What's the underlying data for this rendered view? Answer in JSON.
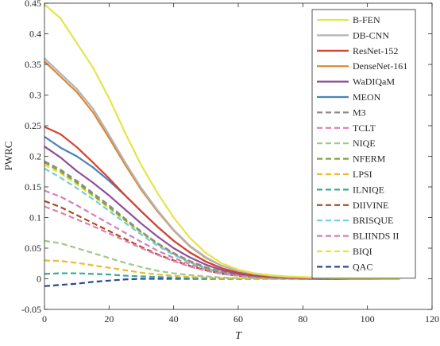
{
  "chart_data": {
    "type": "line",
    "title": "",
    "xlabel": "T",
    "ylabel": "PWRC",
    "xlim": [
      0,
      120
    ],
    "ylim": [
      -0.05,
      0.45
    ],
    "xticks": [
      0,
      20,
      40,
      60,
      80,
      100,
      120
    ],
    "xtick_labels": [
      "0",
      "20",
      "40",
      "60",
      "80",
      "100",
      "120"
    ],
    "yticks": [
      -0.05,
      0,
      0.05,
      0.1,
      0.15,
      0.2,
      0.25,
      0.3,
      0.35,
      0.4,
      0.45
    ],
    "ytick_labels": [
      "-0.05",
      "0",
      "0.05",
      "0.1",
      "0.15",
      "0.2",
      "0.25",
      "0.3",
      "0.35",
      "0.4",
      "0.45"
    ],
    "grid": false,
    "legend_position": "top-right",
    "x": [
      0,
      5,
      10,
      15,
      20,
      25,
      30,
      35,
      40,
      45,
      50,
      55,
      60,
      65,
      70,
      75,
      80,
      85,
      90,
      95,
      100,
      105,
      110
    ],
    "series": [
      {
        "name": "B-FEN",
        "color": "#e7e34a",
        "dashed": false,
        "values": [
          0.448,
          0.425,
          0.385,
          0.345,
          0.295,
          0.238,
          0.185,
          0.14,
          0.1,
          0.067,
          0.042,
          0.025,
          0.015,
          0.009,
          0.006,
          0.004,
          0.003,
          0.002,
          0.001,
          0.001,
          0.001,
          0.0,
          0.0
        ]
      },
      {
        "name": "DB-CNN",
        "color": "#b4b4b4",
        "dashed": false,
        "values": [
          0.36,
          0.335,
          0.31,
          0.278,
          0.235,
          0.19,
          0.148,
          0.112,
          0.08,
          0.054,
          0.035,
          0.021,
          0.013,
          0.008,
          0.005,
          0.003,
          0.002,
          0.001,
          0.001,
          0.0,
          0.0,
          0.0,
          0.0
        ]
      },
      {
        "name": "ResNet-152",
        "color": "#d6432f",
        "dashed": false,
        "values": [
          0.248,
          0.236,
          0.215,
          0.19,
          0.164,
          0.136,
          0.11,
          0.085,
          0.062,
          0.043,
          0.028,
          0.017,
          0.01,
          0.006,
          0.004,
          0.002,
          0.001,
          0.001,
          0.0,
          0.0,
          0.0,
          0.0,
          0.0
        ]
      },
      {
        "name": "DenseNet-161",
        "color": "#e0862f",
        "dashed": false,
        "values": [
          0.355,
          0.33,
          0.305,
          0.272,
          0.23,
          0.186,
          0.145,
          0.11,
          0.079,
          0.053,
          0.034,
          0.021,
          0.013,
          0.008,
          0.005,
          0.003,
          0.002,
          0.001,
          0.001,
          0.0,
          0.0,
          0.0,
          0.0
        ]
      },
      {
        "name": "WaDIQaM",
        "color": "#8e4f9a",
        "dashed": false,
        "values": [
          0.216,
          0.198,
          0.176,
          0.157,
          0.136,
          0.113,
          0.09,
          0.069,
          0.05,
          0.035,
          0.023,
          0.014,
          0.008,
          0.005,
          0.003,
          0.002,
          0.001,
          0.0,
          0.0,
          0.0,
          0.0,
          0.0,
          0.0
        ]
      },
      {
        "name": "MEON",
        "color": "#4a81b9",
        "dashed": false,
        "values": [
          0.232,
          0.214,
          0.2,
          0.182,
          0.16,
          0.136,
          0.11,
          0.085,
          0.062,
          0.043,
          0.028,
          0.017,
          0.01,
          0.006,
          0.004,
          0.002,
          0.001,
          0.001,
          0.0,
          0.0,
          0.0,
          0.0,
          0.0
        ]
      },
      {
        "name": "M3",
        "color": "#8c8c8c",
        "dashed": true,
        "values": [
          0.192,
          0.178,
          0.16,
          0.14,
          0.12,
          0.098,
          0.077,
          0.058,
          0.042,
          0.029,
          0.019,
          0.011,
          0.007,
          0.004,
          0.002,
          0.001,
          0.001,
          0.0,
          0.0,
          0.0,
          0.0,
          0.0,
          0.0
        ]
      },
      {
        "name": "TCLT",
        "color": "#e07fb0",
        "dashed": true,
        "values": [
          0.118,
          0.108,
          0.097,
          0.086,
          0.074,
          0.062,
          0.05,
          0.039,
          0.029,
          0.02,
          0.013,
          0.008,
          0.005,
          0.003,
          0.002,
          0.001,
          0.0,
          0.0,
          0.0,
          0.0,
          0.0,
          0.0,
          0.0
        ]
      },
      {
        "name": "NIQE",
        "color": "#9fc98a",
        "dashed": true,
        "values": [
          0.062,
          0.058,
          0.05,
          0.042,
          0.034,
          0.026,
          0.019,
          0.013,
          0.009,
          0.006,
          0.004,
          0.002,
          0.001,
          0.001,
          0.0,
          0.0,
          0.0,
          0.0,
          0.0,
          0.0,
          0.0,
          0.0,
          0.0
        ]
      },
      {
        "name": "NFERM",
        "color": "#7aa83e",
        "dashed": true,
        "values": [
          0.19,
          0.175,
          0.157,
          0.137,
          0.117,
          0.096,
          0.076,
          0.057,
          0.041,
          0.028,
          0.018,
          0.011,
          0.006,
          0.004,
          0.002,
          0.001,
          0.0,
          0.0,
          0.0,
          0.0,
          0.0,
          0.0,
          0.0
        ]
      },
      {
        "name": "LPSI",
        "color": "#e9bd2c",
        "dashed": true,
        "values": [
          0.03,
          0.029,
          0.026,
          0.022,
          0.018,
          0.014,
          0.01,
          0.007,
          0.005,
          0.003,
          0.002,
          0.001,
          0.001,
          0.0,
          0.0,
          0.0,
          0.0,
          0.0,
          0.0,
          0.0,
          0.0,
          0.0,
          0.0
        ]
      },
      {
        "name": "ILNIQE",
        "color": "#3aa89a",
        "dashed": true,
        "values": [
          0.008,
          0.009,
          0.009,
          0.008,
          0.007,
          0.005,
          0.004,
          0.003,
          0.002,
          0.001,
          0.001,
          0.0,
          0.0,
          0.0,
          0.0,
          0.0,
          0.0,
          0.0,
          0.0,
          0.0,
          0.0,
          0.0,
          0.0
        ]
      },
      {
        "name": "DIIVINE",
        "color": "#a94a22",
        "dashed": true,
        "values": [
          0.127,
          0.117,
          0.104,
          0.091,
          0.078,
          0.065,
          0.052,
          0.04,
          0.03,
          0.021,
          0.014,
          0.008,
          0.005,
          0.003,
          0.002,
          0.001,
          0.0,
          0.0,
          0.0,
          0.0,
          0.0,
          0.0,
          0.0
        ]
      },
      {
        "name": "BRISQUE",
        "color": "#6fcde6",
        "dashed": true,
        "values": [
          0.18,
          0.165,
          0.148,
          0.13,
          0.111,
          0.091,
          0.072,
          0.054,
          0.039,
          0.027,
          0.017,
          0.01,
          0.006,
          0.003,
          0.002,
          0.001,
          0.0,
          0.0,
          0.0,
          0.0,
          0.0,
          0.0,
          0.0
        ]
      },
      {
        "name": "BLIINDS II",
        "color": "#d77fb3",
        "dashed": true,
        "values": [
          0.144,
          0.134,
          0.12,
          0.105,
          0.09,
          0.075,
          0.06,
          0.046,
          0.034,
          0.024,
          0.016,
          0.01,
          0.006,
          0.003,
          0.002,
          0.001,
          0.0,
          0.0,
          0.0,
          0.0,
          0.0,
          0.0,
          0.0
        ]
      },
      {
        "name": "BIQI",
        "color": "#f0e22a",
        "dashed": true,
        "values": [
          0.186,
          0.172,
          0.154,
          0.135,
          0.115,
          0.095,
          0.075,
          0.057,
          0.041,
          0.028,
          0.018,
          0.011,
          0.006,
          0.004,
          0.002,
          0.001,
          0.0,
          0.0,
          0.0,
          0.0,
          0.0,
          0.0,
          0.0
        ]
      },
      {
        "name": "QAC",
        "color": "#2c4a8e",
        "dashed": true,
        "values": [
          -0.012,
          -0.01,
          -0.008,
          -0.005,
          -0.003,
          -0.001,
          0.0,
          0.0,
          0.0,
          0.0,
          0.0,
          0.0,
          0.0,
          0.0,
          0.0,
          0.0,
          0.0,
          0.0,
          0.0,
          0.0,
          0.0,
          0.0,
          0.0
        ]
      }
    ]
  }
}
